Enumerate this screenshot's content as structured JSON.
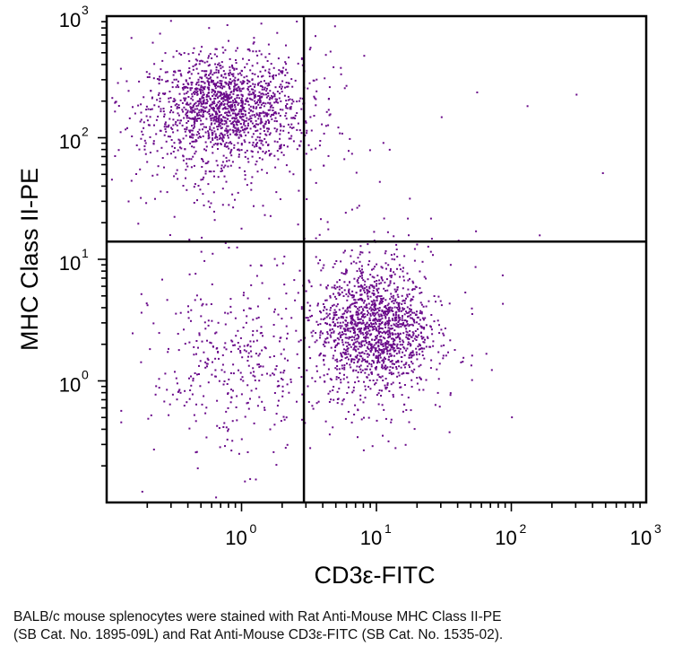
{
  "chart_data": {
    "type": "scatter",
    "title": "",
    "xlabel": "CD3ε-FITC",
    "ylabel": "MHC Class II-PE",
    "xscale": "log",
    "yscale": "log",
    "xlim": [
      0.1,
      1000
    ],
    "ylim": [
      0.1,
      1000
    ],
    "x_ticks": [
      {
        "base": "10",
        "exp": "0",
        "value": 1
      },
      {
        "base": "10",
        "exp": "1",
        "value": 10
      },
      {
        "base": "10",
        "exp": "2",
        "value": 100
      },
      {
        "base": "10",
        "exp": "3",
        "value": 1000
      }
    ],
    "y_ticks": [
      {
        "base": "10",
        "exp": "0",
        "value": 1
      },
      {
        "base": "10",
        "exp": "1",
        "value": 10
      },
      {
        "base": "10",
        "exp": "2",
        "value": 100
      },
      {
        "base": "10",
        "exp": "3",
        "value": 1000
      }
    ],
    "gates": {
      "x": 2.9,
      "y": 14
    },
    "point_color": "#6a0a8a",
    "populations": [
      {
        "name": "upper-left dense",
        "center": [
          0.75,
          180
        ],
        "spread": [
          0.28,
          0.2
        ],
        "count": 1250
      },
      {
        "name": "upper-left halo",
        "center": [
          0.7,
          120
        ],
        "spread": [
          0.42,
          0.42
        ],
        "count": 420
      },
      {
        "name": "lower-right dense",
        "center": [
          9.5,
          2.8
        ],
        "spread": [
          0.2,
          0.25
        ],
        "count": 1150
      },
      {
        "name": "lower-right halo",
        "center": [
          9.5,
          2.5
        ],
        "spread": [
          0.32,
          0.4
        ],
        "count": 420
      },
      {
        "name": "lower-left",
        "center": [
          0.85,
          1.3
        ],
        "spread": [
          0.3,
          0.38
        ],
        "count": 360
      }
    ],
    "outliers": [
      [
        55,
        240
      ],
      [
        130,
        185
      ],
      [
        300,
        230
      ],
      [
        470,
        52
      ],
      [
        160,
        16
      ],
      [
        85,
        7.5
      ],
      [
        4.5,
        520
      ],
      [
        8,
        480
      ],
      [
        3.2,
        560
      ],
      [
        25,
        22
      ],
      [
        12,
        17
      ],
      [
        4,
        60
      ],
      [
        5.5,
        110
      ],
      [
        30,
        150
      ],
      [
        3.4,
        300
      ],
      [
        6.5,
        75
      ]
    ]
  },
  "caption": {
    "line1": "BALB/c mouse splenocytes were stained with Rat Anti-Mouse MHC Class II-PE",
    "line2": "(SB Cat. No. 1895-09L) and Rat Anti-Mouse CD3ε-FITC (SB Cat. No. 1535-02)."
  }
}
